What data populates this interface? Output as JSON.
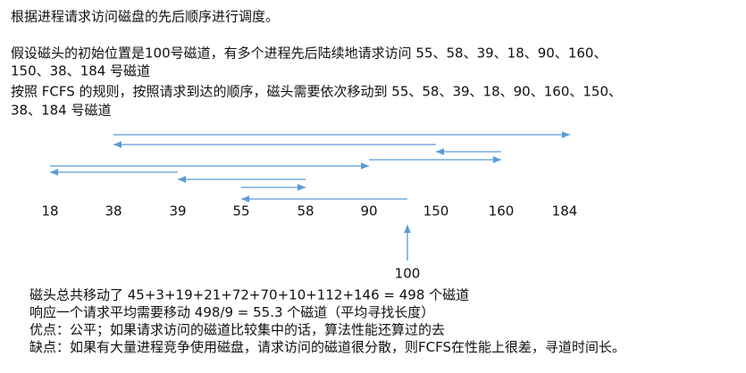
{
  "title": "根据进程请求访问磁盘的先后顺序进行调度。",
  "paragraphs": [
    "假设磁头的初始位置是100号磁道，有多个进程先后陆续地请求访问 55、58、39、18、90、160、",
    "150、38、184 号磁道",
    "按照 FCFS 的规则，按照请求到达的顺序，磁头需要依次移动到 55、58、39、18、90、160、150、",
    "38、184 号磁道"
  ],
  "tracks": [
    "18",
    "38",
    "39",
    "55",
    "58",
    "90",
    "150",
    "160",
    "184"
  ],
  "start": "100",
  "summary": [
    "磁头总共移动了  45+3+19+21+72+70+10+112+146 = 498  个磁道",
    "响应一个请求平均需要移动 498/9 = 55.3 个磁道（平均寻找长度）",
    "优点：公平；如果请求访问的磁道比较集中的话，算法性能还算过的去",
    "缺点：如果有大量进程竞争使用磁盘，请求访问的磁道很分散，则FCFS在性能上很差，寻道时间长。"
  ]
}
